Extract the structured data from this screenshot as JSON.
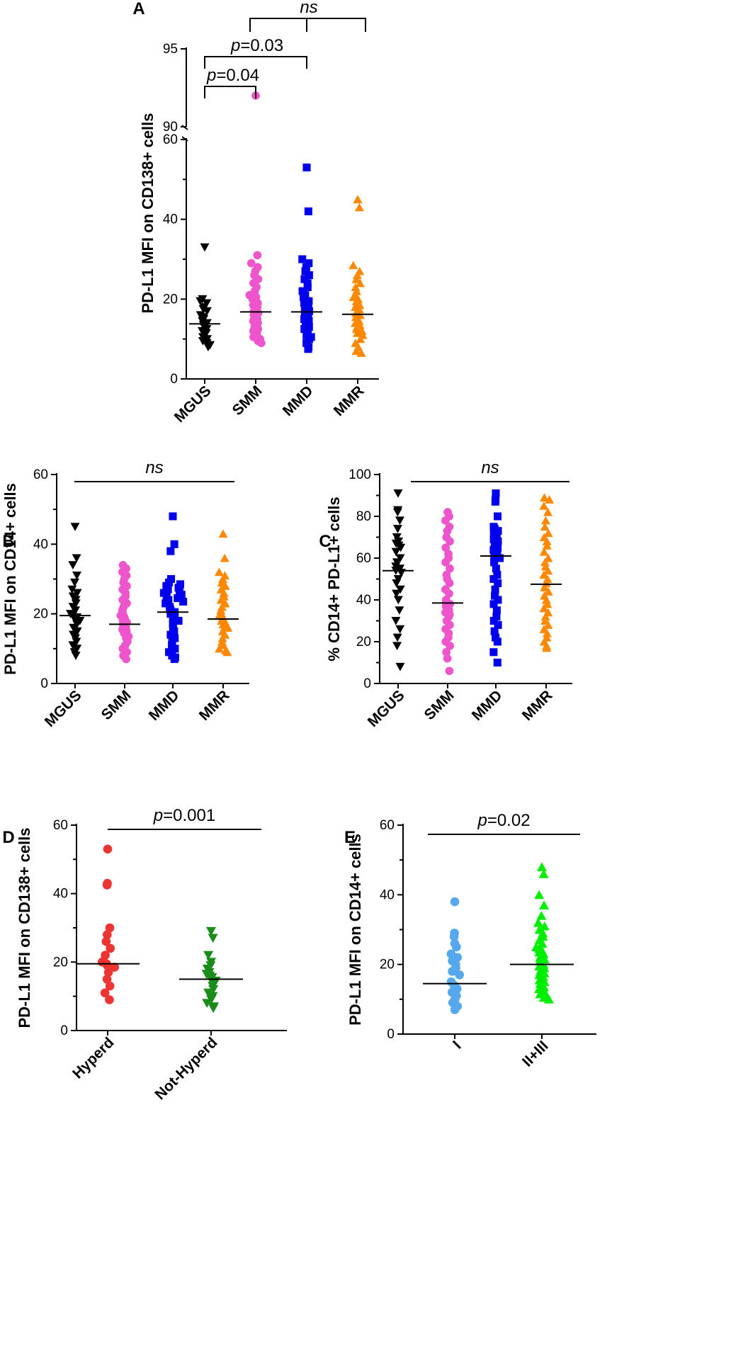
{
  "chart_data": [
    {
      "panel": "A",
      "type": "scatter",
      "ylabel": "PD-L1 MFI on CD138+ cells",
      "categories": [
        "MGUS",
        "SMM",
        "MMD",
        "MMR"
      ],
      "yticks": [
        0,
        20,
        40,
        60,
        90,
        95
      ],
      "ylim_lower": [
        0,
        60
      ],
      "ylim_upper": [
        90,
        95
      ],
      "series": [
        {
          "name": "MGUS",
          "color": "#000000",
          "marker": "triangle-down",
          "median": 13.8,
          "values": [
            33,
            20,
            19.5,
            19,
            18,
            17.5,
            17,
            16,
            15.5,
            15,
            14.5,
            14,
            13.5,
            13,
            12.5,
            12,
            11.5,
            11,
            10.5,
            10,
            9.5,
            9,
            8.5,
            8
          ]
        },
        {
          "name": "SMM",
          "color": "#ee55cc",
          "marker": "circle",
          "median": 16.8,
          "values": [
            92,
            31,
            29,
            28,
            27,
            26,
            25,
            24,
            23,
            22,
            21,
            20.5,
            20,
            19.5,
            19,
            18.5,
            18,
            17.5,
            17,
            16.5,
            16,
            15.5,
            15,
            14.5,
            14,
            13.5,
            13,
            12.5,
            12,
            11.5,
            11,
            10.5,
            10,
            9.5,
            9
          ]
        },
        {
          "name": "MMD",
          "color": "#0000ee",
          "marker": "square",
          "median": 16.8,
          "values": [
            53,
            42,
            30,
            29,
            28,
            27,
            26,
            25,
            24,
            23,
            22,
            21,
            20.5,
            20,
            19.5,
            19,
            18.5,
            18,
            17.5,
            17,
            16.5,
            16,
            15.5,
            15,
            14.5,
            14,
            13.5,
            13,
            12.5,
            12,
            11.5,
            11,
            10.5,
            10,
            9,
            8,
            7.5
          ]
        },
        {
          "name": "MMR",
          "color": "#ff8800",
          "marker": "triangle-up",
          "median": 16.2,
          "values": [
            45,
            43,
            28.5,
            27,
            26,
            25,
            24,
            23,
            22,
            21,
            20.5,
            20,
            19.5,
            19,
            18.5,
            18,
            17.5,
            17,
            16.5,
            16,
            15.5,
            15,
            14.5,
            14,
            13.5,
            13,
            12.5,
            12,
            11.5,
            11,
            10,
            9,
            8,
            7,
            6.5
          ]
        }
      ],
      "brackets": [
        {
          "from": "MGUS",
          "to": "SMM",
          "label_prefix": "p",
          "label_value": "=0.04"
        },
        {
          "from": "MGUS",
          "to": "MMD",
          "label_prefix": "p",
          "label_value": "=0.03"
        },
        {
          "from": "SMM",
          "to": "MMD+MMR",
          "label": "ns"
        }
      ]
    },
    {
      "panel": "B",
      "type": "scatter",
      "ylabel": "PD-L1 MFI on CD14+ cells",
      "categories": [
        "MGUS",
        "SMM",
        "MMD",
        "MMR"
      ],
      "yticks": [
        0,
        20,
        40,
        60
      ],
      "ylim": [
        0,
        60
      ],
      "stat_label": "ns",
      "series": [
        {
          "name": "MGUS",
          "color": "#000000",
          "marker": "triangle-down",
          "median": 19.5,
          "values": [
            45,
            36,
            34,
            31,
            29,
            27,
            26,
            25,
            24,
            23,
            22,
            21,
            20,
            19.5,
            19,
            18.5,
            18,
            17,
            16,
            15,
            14,
            13,
            12,
            11,
            10,
            9,
            8
          ]
        },
        {
          "name": "SMM",
          "color": "#ee55cc",
          "marker": "circle",
          "median": 17,
          "values": [
            34,
            33,
            32,
            31,
            30,
            29,
            28,
            27,
            26,
            25,
            24,
            23,
            22,
            21,
            20,
            19.5,
            19,
            18.5,
            18,
            17.5,
            17,
            16.5,
            16,
            15.5,
            15,
            14.5,
            14,
            13.5,
            13,
            12,
            11,
            10,
            9,
            8,
            7
          ]
        },
        {
          "name": "MMD",
          "color": "#0000ee",
          "marker": "square",
          "median": 20.5,
          "values": [
            48,
            40,
            38,
            30,
            29,
            28,
            27,
            26,
            25,
            24,
            23,
            22,
            21.5,
            21,
            20.5,
            20,
            19.5,
            19,
            18.5,
            18,
            17,
            16,
            15,
            14,
            13,
            12,
            11,
            10,
            9,
            8,
            7.5,
            7,
            28.5,
            27.5,
            26.5,
            25.5,
            24.5,
            23.5
          ]
        },
        {
          "name": "MMR",
          "color": "#ff8800",
          "marker": "triangle-up",
          "median": 18.5,
          "values": [
            43,
            36,
            32,
            31,
            30,
            29,
            28,
            27,
            26,
            25,
            24,
            23,
            22,
            21,
            20,
            19.5,
            19,
            18.5,
            18,
            17.5,
            17,
            16.5,
            16,
            15,
            14,
            13,
            12,
            11,
            10,
            9.5,
            9
          ]
        }
      ]
    },
    {
      "panel": "C",
      "type": "scatter",
      "ylabel": "% CD14+ PD-L1+ cells",
      "categories": [
        "MGUS",
        "SMM",
        "MMD",
        "MMR"
      ],
      "yticks": [
        0,
        20,
        40,
        60,
        80,
        100
      ],
      "ylim": [
        0,
        100
      ],
      "stat_label": "ns",
      "series": [
        {
          "name": "MGUS",
          "color": "#000000",
          "marker": "triangle-down",
          "median": 54,
          "values": [
            91,
            83,
            82,
            78,
            74,
            70,
            68,
            67,
            66,
            65,
            63,
            60,
            58,
            56,
            55,
            54,
            53,
            50,
            48,
            45,
            43,
            40,
            35,
            30,
            26,
            22,
            18,
            8
          ]
        },
        {
          "name": "SMM",
          "color": "#ee55cc",
          "marker": "circle",
          "median": 38.5,
          "values": [
            82,
            80,
            78,
            75,
            73,
            70,
            68,
            65,
            62,
            60,
            58,
            55,
            52,
            50,
            48,
            45,
            43,
            40,
            39,
            38,
            37,
            36,
            35,
            34,
            33,
            32,
            30,
            28,
            26,
            24,
            22,
            20,
            18,
            15,
            12,
            6
          ]
        },
        {
          "name": "MMD",
          "color": "#0000ee",
          "marker": "square",
          "median": 61,
          "values": [
            91,
            88,
            87,
            80,
            75,
            74,
            73,
            72,
            71,
            70,
            69,
            68,
            67,
            66,
            65,
            64,
            63,
            62,
            61,
            60,
            58,
            55,
            52,
            50,
            48,
            45,
            42,
            40,
            38,
            35,
            32,
            30,
            28,
            25,
            22,
            20,
            15,
            10
          ]
        },
        {
          "name": "MMR",
          "color": "#ff8800",
          "marker": "triangle-up",
          "median": 47.5,
          "values": [
            89,
            88,
            85,
            82,
            78,
            75,
            72,
            70,
            68,
            66,
            63,
            60,
            58,
            56,
            54,
            52,
            50,
            48,
            46,
            44,
            42,
            40,
            38,
            36,
            34,
            32,
            30,
            28,
            26,
            24,
            22,
            20,
            18,
            17
          ]
        }
      ]
    },
    {
      "panel": "D",
      "type": "scatter",
      "ylabel": "PD-L1 MFI on CD138+ cells",
      "categories": [
        "Hyperd",
        "Not-Hyperd"
      ],
      "yticks": [
        0,
        20,
        40,
        60
      ],
      "ylim": [
        0,
        60
      ],
      "stat_prefix": "p",
      "stat_value": "=0.001",
      "series": [
        {
          "name": "Hyperd",
          "color": "#ee3333",
          "marker": "circle",
          "median": 19.5,
          "values": [
            53,
            43,
            42.5,
            30,
            28,
            26,
            24,
            22,
            20,
            19.5,
            19,
            18.5,
            17,
            15,
            13,
            11,
            9
          ]
        },
        {
          "name": "Not-Hyperd",
          "color": "#1a8c1a",
          "marker": "triangle-down",
          "median": 15,
          "values": [
            29,
            27,
            22,
            20,
            19,
            18,
            17,
            16.5,
            16,
            15.5,
            15,
            14.5,
            14,
            13,
            12,
            11,
            10,
            9,
            8,
            7,
            6.5
          ]
        }
      ]
    },
    {
      "panel": "E",
      "type": "scatter",
      "ylabel": "PD-L1 MFI on CD14+ cells",
      "categories": [
        "I",
        "II+III"
      ],
      "yticks": [
        0,
        20,
        40,
        60
      ],
      "ylim": [
        0,
        60
      ],
      "stat_prefix": "p",
      "stat_value": "=0.02",
      "series": [
        {
          "name": "I",
          "color": "#55a8ee",
          "marker": "circle",
          "median": 14.5,
          "values": [
            38,
            29,
            28,
            26,
            25,
            23,
            22,
            21,
            20,
            19,
            18,
            17,
            15,
            14,
            13,
            12,
            11,
            10,
            9,
            8,
            7
          ]
        },
        {
          "name": "II+III",
          "color": "#00ee00",
          "marker": "triangle-up",
          "median": 20,
          "values": [
            48,
            46,
            40,
            37,
            34,
            32,
            31,
            30,
            29,
            28,
            27,
            26,
            25,
            24.5,
            24,
            23.5,
            23,
            22.5,
            22,
            21.5,
            21,
            20.5,
            20,
            19.5,
            19,
            18.5,
            18,
            17.5,
            17,
            16.5,
            16,
            15.5,
            15,
            14.5,
            14,
            13.5,
            13,
            12.5,
            12,
            11.5,
            11,
            10.5,
            10
          ]
        }
      ]
    }
  ]
}
